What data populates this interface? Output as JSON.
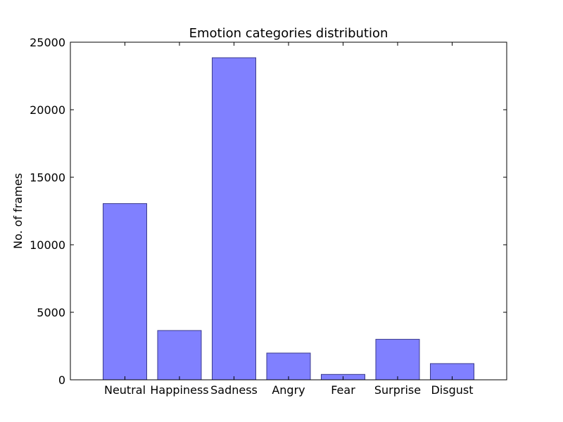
{
  "chart_data": {
    "type": "bar",
    "title": "Emotion categories distribution",
    "y_label": "No. of frames",
    "categories": [
      "Neutral",
      "Happiness",
      "Sadness",
      "Angry",
      "Fear",
      "Surprise",
      "Disgust"
    ],
    "values": [
      13050,
      3650,
      23850,
      1980,
      400,
      3000,
      1200
    ],
    "color": "#8080ff",
    "edge_color": "#3c3c8c",
    "ylim": [
      0,
      25000
    ],
    "yticks": [
      0,
      5000,
      10000,
      15000,
      20000,
      25000
    ],
    "grid": false
  }
}
